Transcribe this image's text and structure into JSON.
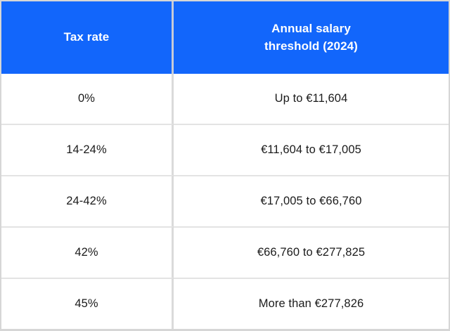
{
  "table": {
    "header": {
      "tax_rate": "Tax rate",
      "threshold": "Annual salary\nthreshold (2024)"
    },
    "rows": [
      {
        "rate": "0%",
        "threshold": "Up to €11,604"
      },
      {
        "rate": "14-24%",
        "threshold": "€11,604 to €17,005"
      },
      {
        "rate": "24-42%",
        "threshold": "€17,005 to €66,760"
      },
      {
        "rate": "42%",
        "threshold": "€66,760 to €277,825"
      },
      {
        "rate": "45%",
        "threshold": "More than €277,826"
      }
    ],
    "colors": {
      "header_bg": "#1266fb",
      "header_text": "#ffffff",
      "body_text": "#1b1b1b",
      "row_border": "#e3e3e3",
      "column_divider": "#dadada",
      "header_divider": "#c6cbd7",
      "outer_border": "#d6d6d6"
    }
  }
}
